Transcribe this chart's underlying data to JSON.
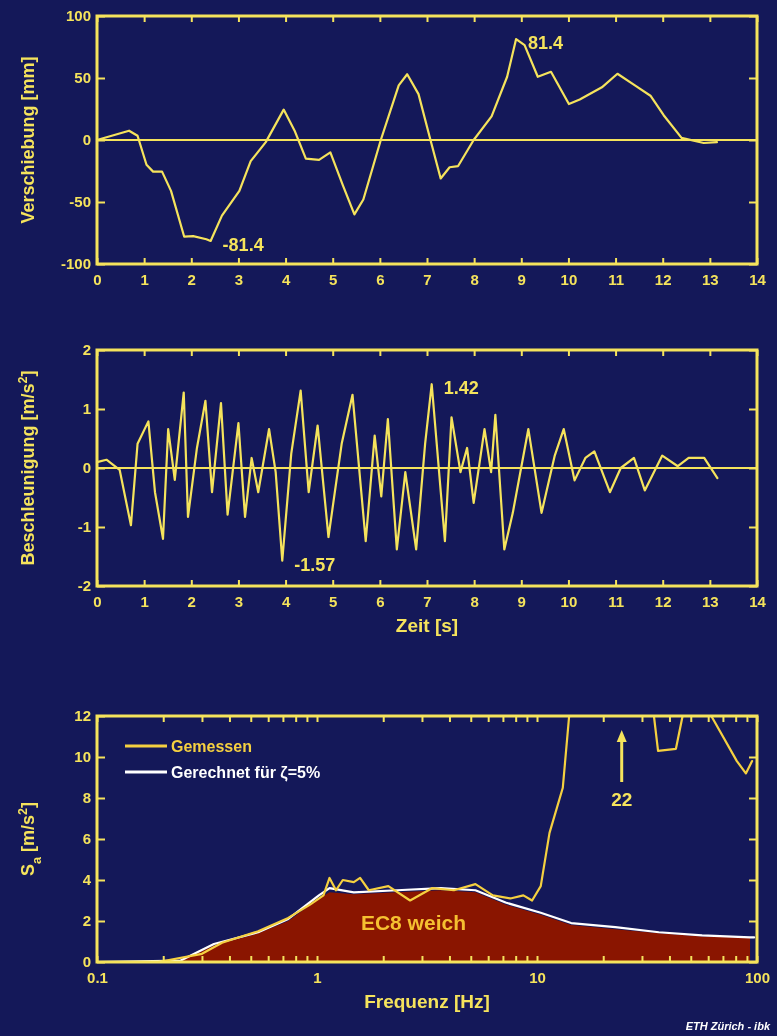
{
  "chart_data": [
    {
      "type": "line",
      "ylabel": "Verschiebung [mm]",
      "xlim": [
        0,
        14
      ],
      "xticks": [
        0,
        1,
        2,
        3,
        4,
        5,
        6,
        7,
        8,
        9,
        10,
        11,
        12,
        13,
        14
      ],
      "ylim": [
        -100,
        100
      ],
      "yticks": [
        -100,
        -50,
        0,
        50,
        100
      ],
      "grid": false,
      "legend": false,
      "ref_lines": [
        {
          "axis": "y",
          "value": 0,
          "color": "#f5e35c"
        }
      ],
      "annotations": [
        {
          "text": "81.4",
          "x": 8.89,
          "y": 81.4
        },
        {
          "text": "-81.4",
          "x": 2.41,
          "y": -81.4
        }
      ],
      "series": [
        {
          "color": "#f5e35c",
          "x": [
            0,
            0.68,
            0.86,
            1.05,
            1.19,
            1.38,
            1.57,
            1.85,
            2.04,
            2.32,
            2.41,
            2.65,
            3.02,
            3.26,
            3.58,
            3.96,
            4.2,
            4.43,
            4.71,
            4.95,
            5.22,
            5.46,
            5.65,
            6.02,
            6.4,
            6.58,
            6.82,
            7.05,
            7.29,
            7.48,
            7.66,
            7.99,
            8.37,
            8.7,
            8.89,
            9.07,
            9.35,
            9.63,
            10.01,
            10.24,
            10.71,
            11.04,
            11.41,
            11.74,
            12.02,
            12.4,
            12.87,
            13.15
          ],
          "values": [
            0,
            7.5,
            3.4,
            -20,
            -25.5,
            -25.5,
            -41,
            -78,
            -77.5,
            -80,
            -81.4,
            -61,
            -41,
            -17,
            -1.7,
            24.5,
            6.8,
            -15,
            -16,
            -10,
            -37,
            -60,
            -48,
            0,
            44,
            53,
            37,
            3.4,
            -31,
            -22,
            -21,
            0,
            19,
            51,
            81.4,
            76.5,
            51,
            55,
            29,
            32.6,
            42.5,
            53.4,
            44,
            35.7,
            20,
            1.7,
            -2.4,
            -1.7
          ]
        }
      ]
    },
    {
      "type": "line",
      "xlabel": "Zeit [s]",
      "ylabel": "Beschleunigung [m/s$^{2}$]",
      "xlim": [
        0,
        14
      ],
      "xticks": [
        0,
        1,
        2,
        3,
        4,
        5,
        6,
        7,
        8,
        9,
        10,
        11,
        12,
        13,
        14
      ],
      "ylim": [
        -2,
        2
      ],
      "yticks": [
        -2,
        -1,
        0,
        1,
        2
      ],
      "grid": false,
      "legend": false,
      "ref_lines": [
        {
          "axis": "y",
          "value": 0,
          "color": "#f5e35c"
        }
      ],
      "annotations": [
        {
          "text": "1.42",
          "x": 7.1,
          "y": 1.42
        },
        {
          "text": "-1.57",
          "x": 3.93,
          "y": -1.57
        }
      ],
      "series": [
        {
          "color": "#f5e35c",
          "x": [
            0,
            0.2,
            0.48,
            0.72,
            0.86,
            1.09,
            1.23,
            1.4,
            1.51,
            1.65,
            1.84,
            1.93,
            2.12,
            2.3,
            2.44,
            2.63,
            2.77,
            3.0,
            3.14,
            3.28,
            3.42,
            3.65,
            3.79,
            3.93,
            4.12,
            4.32,
            4.49,
            4.68,
            4.91,
            5.19,
            5.42,
            5.7,
            5.89,
            6.03,
            6.17,
            6.36,
            6.54,
            6.77,
            6.96,
            7.1,
            7.38,
            7.52,
            7.71,
            7.85,
            7.99,
            8.22,
            8.36,
            8.45,
            8.64,
            8.82,
            9.15,
            9.43,
            9.71,
            9.9,
            10.13,
            10.36,
            10.55,
            10.88,
            11.11,
            11.39,
            11.62,
            11.99,
            12.32,
            12.55,
            12.88,
            13.16
          ],
          "values": [
            0.1,
            0.14,
            -0.03,
            -0.97,
            0.41,
            0.79,
            -0.41,
            -1.2,
            0.66,
            -0.2,
            1.28,
            -0.83,
            0.34,
            1.14,
            -0.41,
            1.1,
            -0.79,
            0.76,
            -0.83,
            0.17,
            -0.41,
            0.66,
            -0.07,
            -1.57,
            0.24,
            1.31,
            -0.41,
            0.72,
            -1.17,
            0.41,
            1.24,
            -1.24,
            0.55,
            -0.48,
            0.83,
            -1.38,
            -0.07,
            -1.38,
            0.41,
            1.42,
            -1.24,
            0.86,
            -0.07,
            0.34,
            -0.59,
            0.66,
            -0.07,
            0.9,
            -1.38,
            -0.76,
            0.66,
            -0.76,
            0.21,
            0.66,
            -0.21,
            0.17,
            0.28,
            -0.41,
            0,
            0.17,
            -0.38,
            0.21,
            0.03,
            0.17,
            0.17,
            -0.17
          ]
        }
      ]
    },
    {
      "type": "line",
      "xlabel": "Frequenz [Hz]",
      "ylabel": "S$_{a}$ [m/s$^{2}$]",
      "log": "x",
      "xlim": [
        0.1,
        100
      ],
      "xticks": [
        0.1,
        {
          "value": 0.2,
          "label": null
        },
        {
          "value": 0.3,
          "label": null
        },
        {
          "value": 0.4,
          "label": null
        },
        {
          "value": 0.5,
          "label": null
        },
        {
          "value": 0.6,
          "label": null
        },
        {
          "value": 0.7,
          "label": null
        },
        {
          "value": 0.8,
          "label": null
        },
        {
          "value": 0.9,
          "label": null
        },
        1,
        {
          "value": 2,
          "label": null
        },
        {
          "value": 3,
          "label": null
        },
        {
          "value": 4,
          "label": null
        },
        {
          "value": 5,
          "label": null
        },
        {
          "value": 6,
          "label": null
        },
        {
          "value": 7,
          "label": null
        },
        {
          "value": 8,
          "label": null
        },
        {
          "value": 9,
          "label": null
        },
        10,
        {
          "value": 20,
          "label": null
        },
        {
          "value": 30,
          "label": null
        },
        {
          "value": 40,
          "label": null
        },
        {
          "value": 50,
          "label": null
        },
        {
          "value": 60,
          "label": null
        },
        {
          "value": 70,
          "label": null
        },
        {
          "value": 80,
          "label": null
        },
        {
          "value": 90,
          "label": null
        },
        100
      ],
      "ylim": [
        0,
        12
      ],
      "yticks": [
        0,
        2,
        4,
        6,
        8,
        10,
        12
      ],
      "grid": false,
      "legend": "top left",
      "annotations": [
        "22",
        "ETH Zürich - ibk"
      ],
      "series": [
        {
          "name": "EC8 weich",
          "type": "area",
          "color": "#8a1500",
          "x": [
            0.1,
            0.24,
            0.34,
            0.54,
            0.74,
            1.02,
            1.14,
            1.47,
            2.31,
            3.65,
            5.25,
            7.2,
            10.4,
            14.3,
            22.7,
            35.8,
            56.3,
            93
          ],
          "values": [
            0,
            0.05,
            0.8,
            1.4,
            2.0,
            3.1,
            3.4,
            3.3,
            3.4,
            3.5,
            3.4,
            2.8,
            2.3,
            1.8,
            1.6,
            1.4,
            1.25,
            1.2
          ]
        },
        {
          "name": "Gerechnet für ζ=5%",
          "color": "#ffffff",
          "x": [
            0.1,
            0.24,
            0.34,
            0.54,
            0.74,
            1.02,
            1.14,
            1.47,
            2.31,
            3.65,
            5.25,
            7.2,
            10.4,
            14.3,
            22.7,
            35.8,
            56.3,
            93,
            97
          ],
          "values": [
            0,
            0.07,
            0.88,
            1.45,
            2.1,
            3.25,
            3.6,
            3.4,
            3.5,
            3.6,
            3.5,
            2.9,
            2.4,
            1.9,
            1.7,
            1.45,
            1.3,
            1.2,
            1.2
          ]
        },
        {
          "name": "Gemessen",
          "color": "#f5d040",
          "x": [
            0.1,
            0.19,
            0.3,
            0.37,
            0.54,
            0.74,
            0.93,
            1.07,
            1.14,
            1.22,
            1.31,
            1.47,
            1.57,
            1.72,
            2.11,
            2.65,
            3.33,
            4.19,
            5.25,
            6.3,
            7.57,
            8.67,
            9.5,
            10.4,
            11.4,
            13.1,
            14.0,
            20,
            34,
            35.5,
            42.8,
            45.9,
            62,
            81,
            89,
            95
          ],
          "values": [
            0,
            0,
            0.4,
            0.94,
            1.5,
            2.15,
            2.8,
            3.25,
            4.1,
            3.5,
            4.0,
            3.9,
            4.1,
            3.5,
            3.7,
            3.0,
            3.6,
            3.5,
            3.8,
            3.25,
            3.1,
            3.25,
            3.0,
            3.7,
            6.3,
            8.5,
            12,
            null,
            12,
            10.3,
            10.4,
            12,
            12,
            9.8,
            9.2,
            9.8
          ]
        }
      ]
    }
  ]
}
